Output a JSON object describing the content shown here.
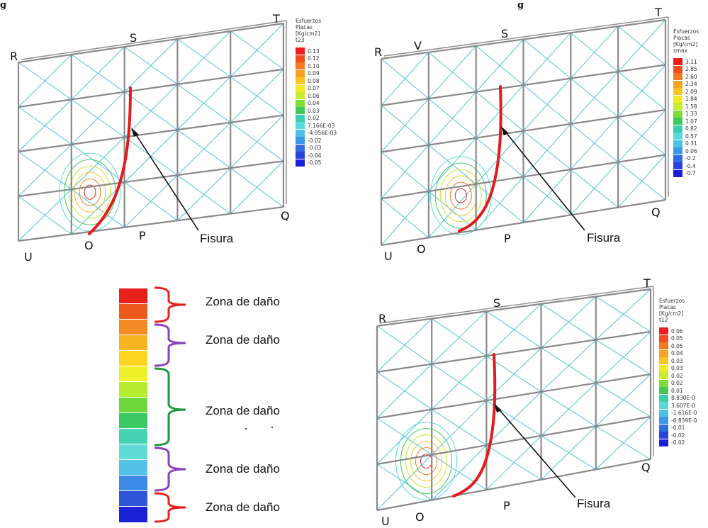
{
  "header_fragments": {
    "left": "g",
    "right": "g"
  },
  "panels": [
    {
      "id": "t23",
      "points": {
        "R": "R",
        "S": "S",
        "T": "T",
        "U": "U",
        "O": "O",
        "P": "P",
        "Q": "Q"
      },
      "fissure_label": "Fisura",
      "legend": {
        "header": [
          "Esfuerzos",
          "Placas",
          "[Kg/cm2]",
          "t23"
        ],
        "values": [
          "0.13",
          "0.12",
          "0.10",
          "0.09",
          "0.08",
          "0.07",
          "0.06",
          "0.04",
          "0.03",
          "0.02",
          "7.166E-03",
          "-4.956E-03",
          "-0.02",
          "-0.03",
          "-0.04",
          "-0.05"
        ]
      }
    },
    {
      "id": "smax",
      "points": {
        "R": "R",
        "V": "V",
        "S": "S",
        "T": "T",
        "U": "U",
        "O": "O",
        "P": "P",
        "Q": "Q"
      },
      "fissure_label": "Fisura",
      "legend": {
        "header": [
          "Esfuerzos",
          "Placas",
          "[Kg/cm2]",
          "smax"
        ],
        "values": [
          "3.11",
          "2.85",
          "2.60",
          "2.34",
          "2.09",
          "1.84",
          "1.58",
          "1.33",
          "1.07",
          "0.82",
          "0.57",
          "0.31",
          "0.06",
          "-0.2",
          "-0.4",
          "-0.7"
        ]
      }
    },
    {
      "id": "t12",
      "points": {
        "R": "R",
        "S": "S",
        "T": "T",
        "U": "U",
        "O": "O",
        "P": "P",
        "Q": "Q"
      },
      "fissure_label": "Fisura",
      "legend": {
        "header": [
          "Esfuerzos",
          "Placas",
          "[Kg/cm2]",
          "t12"
        ],
        "values": [
          "0.06",
          "0.05",
          "0.05",
          "0.04",
          "0.03",
          "0.03",
          "0.02",
          "0.02",
          "0.01",
          "8.830E-0",
          "3.607E-0",
          "-1.616E-0",
          "-6.839E-0",
          "-0.01",
          "-0.02",
          "-0.02"
        ]
      }
    }
  ],
  "damage_scale": {
    "swatches": [
      "#e8201c",
      "#ee5a1e",
      "#f38a24",
      "#f8b321",
      "#fbd51f",
      "#eef02a",
      "#b6ec2e",
      "#6fd83a",
      "#3cc862",
      "#46d4b4",
      "#5fdcd8",
      "#52c2e6",
      "#3a8ae6",
      "#2e55d6",
      "#1a22d8"
    ],
    "zones": [
      {
        "label": "Zona de daño",
        "color": "#e8201c"
      },
      {
        "label": "Zona de daño",
        "color": "#8b40b8"
      },
      {
        "label": "Zona de daño",
        "color": "#1a9a3a"
      },
      {
        "label": "Zona de daño",
        "color": "#8b40b8"
      },
      {
        "label": "Zona de daño",
        "color": "#e8201c"
      }
    ]
  },
  "colors": {
    "fissure": "#e41a1c",
    "mesh": "#4ec3d4",
    "frame": "#8a8a8a"
  }
}
